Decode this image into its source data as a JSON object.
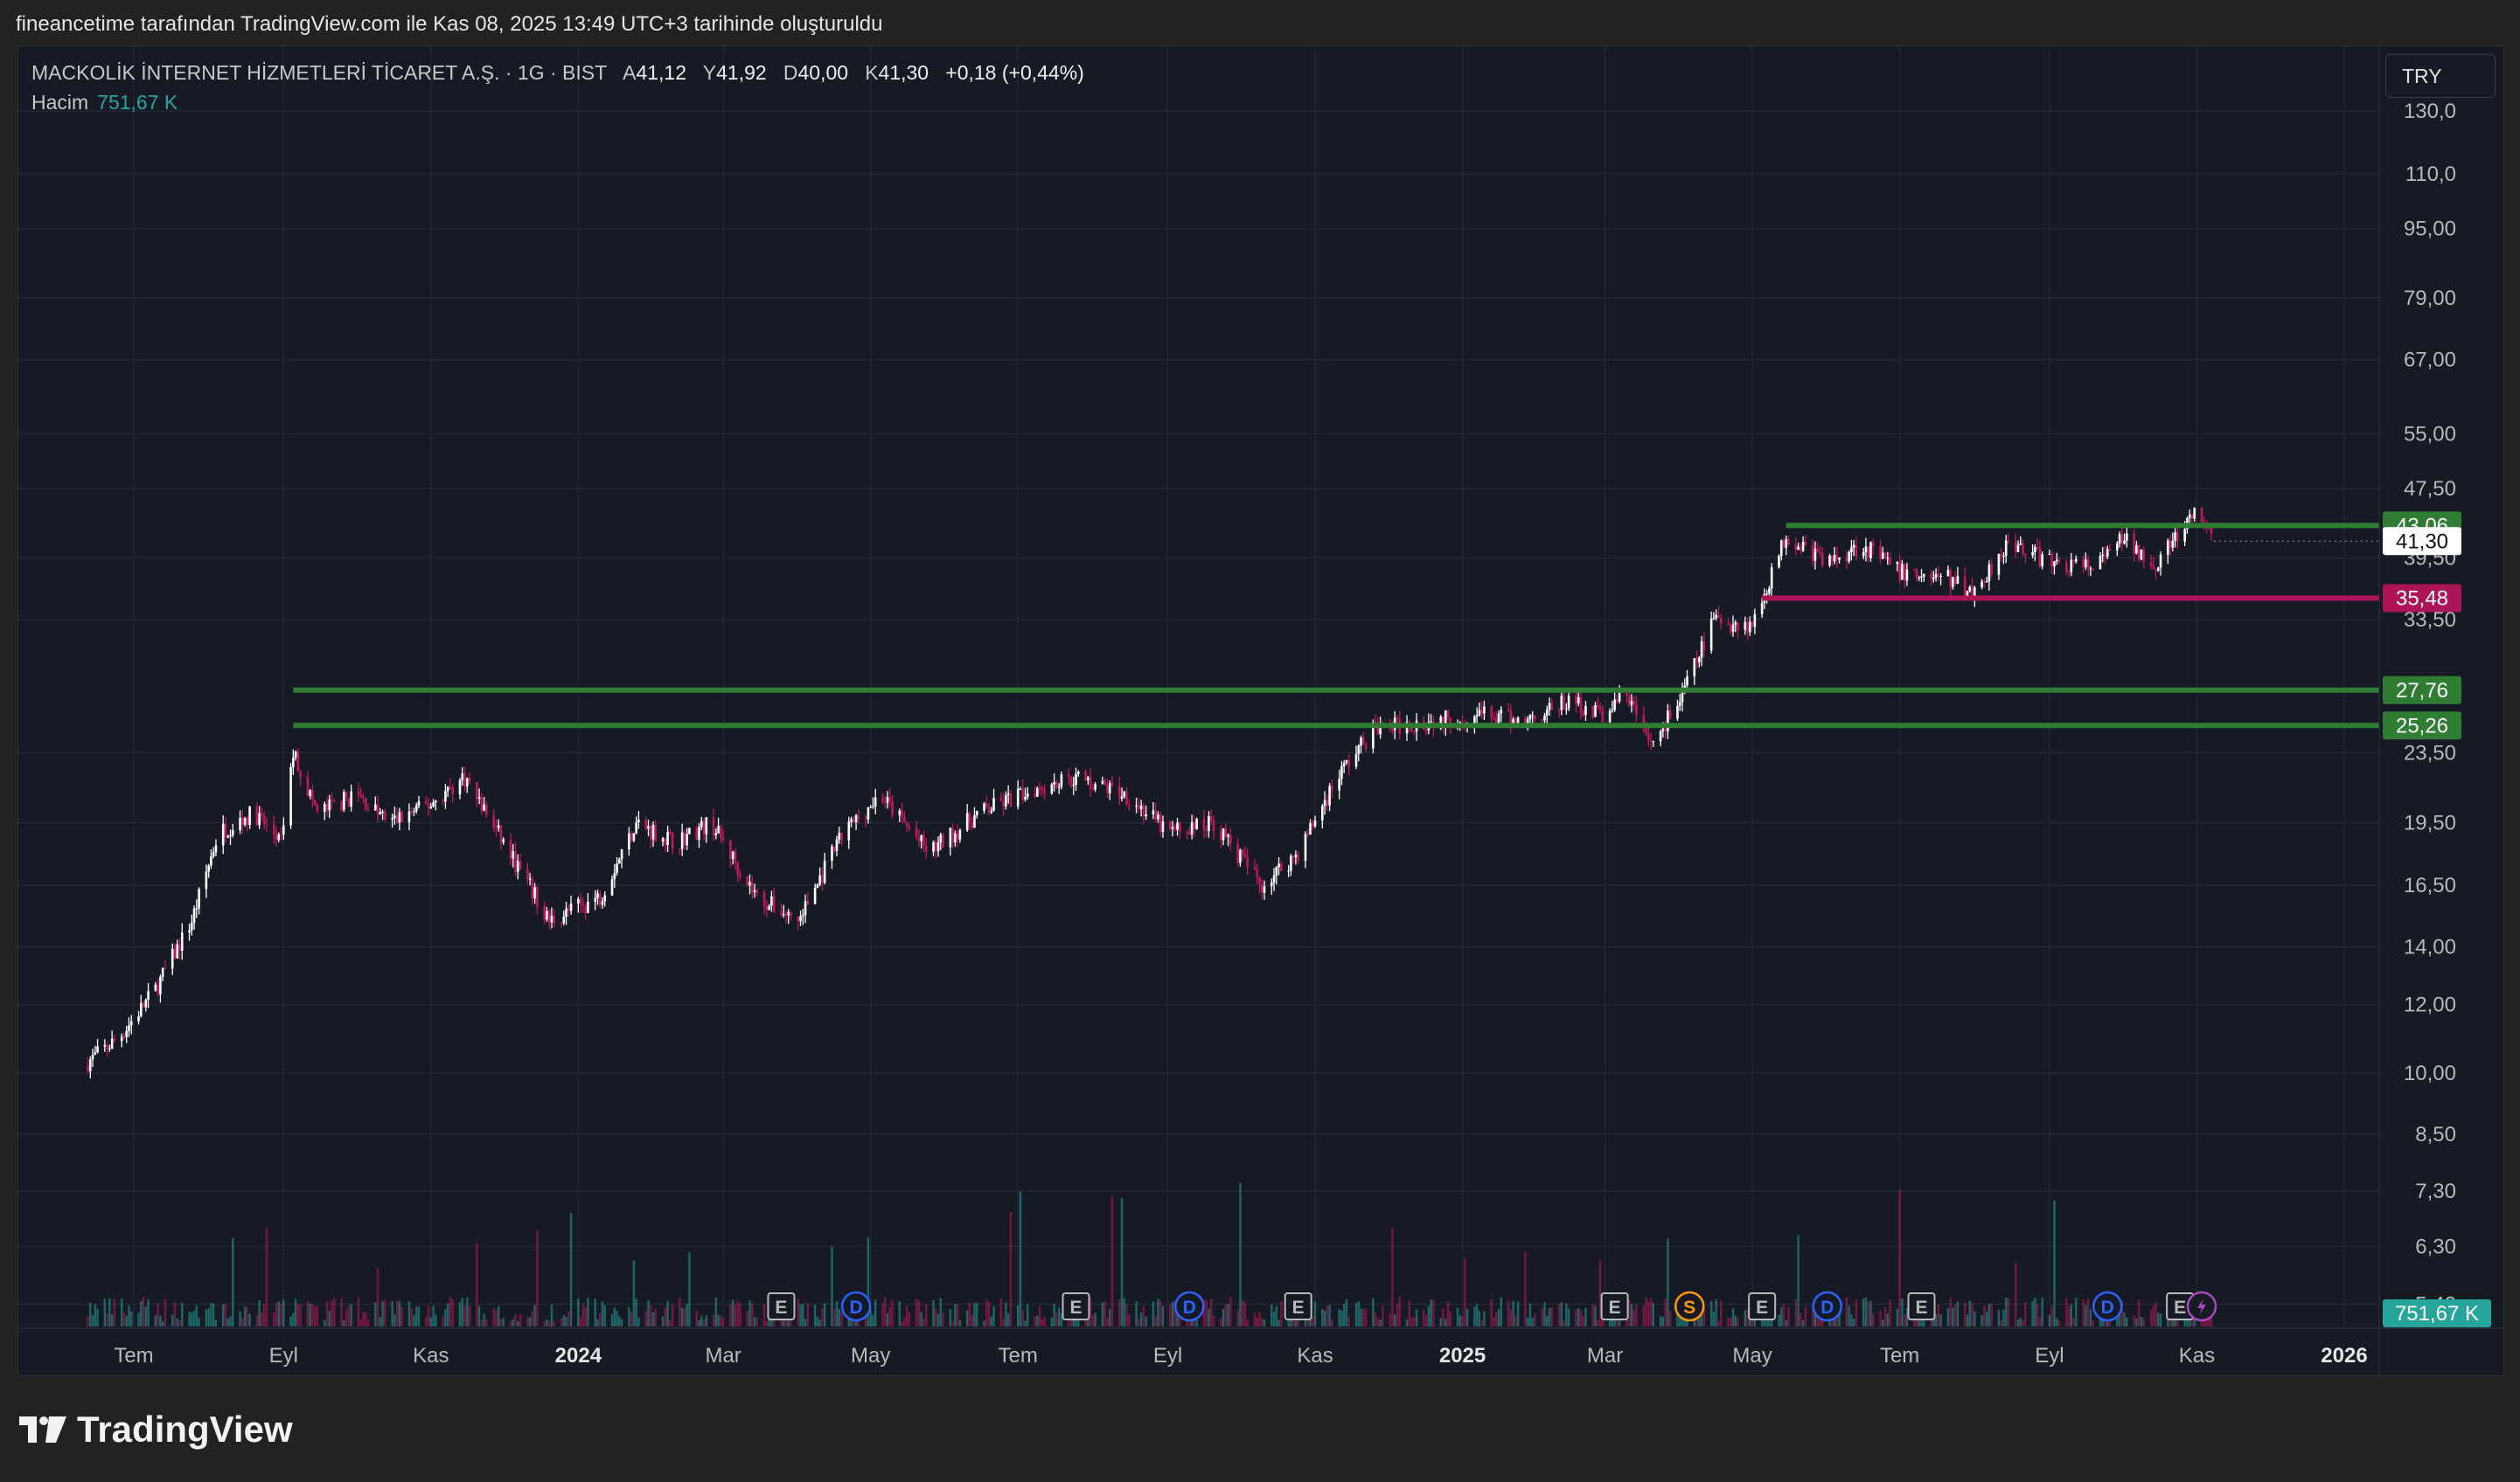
{
  "header": {
    "attribution": "fineancetime tarafından TradingView.com ile Kas 08, 2025 13:49 UTC+3 tarihinde oluşturuldu"
  },
  "legend": {
    "symbol": "MACKOLİK İNTERNET HİZMETLERİ TİCARET A.Ş. · 1G · BIST",
    "open_label": "A",
    "open": "41,12",
    "high_label": "Y",
    "high": "41,92",
    "low_label": "D",
    "low": "40,00",
    "close_label": "K",
    "close": "41,30",
    "change": "+0,18 (+0,44%)",
    "volume_label": "Hacim",
    "volume": "751,67 K"
  },
  "currency_button": "TRY",
  "footer": {
    "brand": "TradingView"
  },
  "colors": {
    "up": "#ffffff",
    "down": "#c2185b",
    "support": "#2e7d32",
    "resistance_magenta": "#ad1457",
    "volume_up": "#26a69a",
    "volume_down": "#c2185b",
    "background": "#161a25"
  },
  "chart_data": {
    "type": "candlestick",
    "y_scale": "log",
    "y_ticks": [
      "130,0",
      "110,0",
      "95,00",
      "79,00",
      "67,00",
      "55,00",
      "47,50",
      "39,50",
      "33,50",
      "23,50",
      "19,50",
      "16,50",
      "14,00",
      "12,00",
      "10,00",
      "8,50",
      "7,30",
      "6,30",
      "5,40"
    ],
    "x_ticks": [
      {
        "label": "Tem",
        "bold": false
      },
      {
        "label": "Eyl",
        "bold": false
      },
      {
        "label": "Kas",
        "bold": false
      },
      {
        "label": "2024",
        "bold": true
      },
      {
        "label": "Mar",
        "bold": false
      },
      {
        "label": "May",
        "bold": false
      },
      {
        "label": "Tem",
        "bold": false
      },
      {
        "label": "Eyl",
        "bold": false
      },
      {
        "label": "Kas",
        "bold": false
      },
      {
        "label": "2025",
        "bold": true
      },
      {
        "label": "Mar",
        "bold": false
      },
      {
        "label": "May",
        "bold": false
      },
      {
        "label": "Tem",
        "bold": false
      },
      {
        "label": "Eyl",
        "bold": false
      },
      {
        "label": "Kas",
        "bold": false
      },
      {
        "label": "2026",
        "bold": true
      }
    ],
    "price_path": [
      [
        "2023-06-10",
        10.2
      ],
      [
        "2023-06-25",
        11.0
      ],
      [
        "2023-07-10",
        12.5
      ],
      [
        "2023-07-25",
        15.0
      ],
      [
        "2023-08-05",
        19.0
      ],
      [
        "2023-08-20",
        20.0
      ],
      [
        "2023-08-31",
        18.5
      ],
      [
        "2023-09-05",
        23.5
      ],
      [
        "2023-09-15",
        20.0
      ],
      [
        "2023-10-01",
        21.0
      ],
      [
        "2023-10-15",
        19.5
      ],
      [
        "2023-11-01",
        20.5
      ],
      [
        "2023-11-15",
        22.0
      ],
      [
        "2023-12-01",
        18.5
      ],
      [
        "2023-12-20",
        15.0
      ],
      [
        "2024-01-10",
        16.0
      ],
      [
        "2024-01-25",
        19.5
      ],
      [
        "2024-02-10",
        18.5
      ],
      [
        "2024-02-25",
        19.5
      ],
      [
        "2024-03-15",
        16.0
      ],
      [
        "2024-04-01",
        15.0
      ],
      [
        "2024-04-20",
        19.0
      ],
      [
        "2024-05-05",
        21.0
      ],
      [
        "2024-05-25",
        18.0
      ],
      [
        "2024-06-15",
        20.0
      ],
      [
        "2024-07-10",
        21.5
      ],
      [
        "2024-07-25",
        22.0
      ],
      [
        "2024-08-15",
        21.0
      ],
      [
        "2024-09-01",
        19.0
      ],
      [
        "2024-09-20",
        19.5
      ],
      [
        "2024-10-10",
        16.5
      ],
      [
        "2024-10-25",
        18.0
      ],
      [
        "2024-11-10",
        22.0
      ],
      [
        "2024-11-25",
        25.0
      ],
      [
        "2024-12-15",
        25.5
      ],
      [
        "2025-01-10",
        26.0
      ],
      [
        "2025-01-25",
        25.5
      ],
      [
        "2025-02-15",
        27.0
      ],
      [
        "2025-02-28",
        26.0
      ],
      [
        "2025-03-10",
        27.5
      ],
      [
        "2025-03-20",
        24.0
      ],
      [
        "2025-04-01",
        27.0
      ],
      [
        "2025-04-15",
        33.5
      ],
      [
        "2025-05-01",
        33.0
      ],
      [
        "2025-05-15",
        42.0
      ],
      [
        "2025-06-01",
        39.0
      ],
      [
        "2025-06-15",
        41.0
      ],
      [
        "2025-07-01",
        38.0
      ],
      [
        "2025-07-20",
        37.5
      ],
      [
        "2025-08-01",
        36.0
      ],
      [
        "2025-08-15",
        41.5
      ],
      [
        "2025-09-01",
        39.0
      ],
      [
        "2025-09-20",
        38.5
      ],
      [
        "2025-10-01",
        41.5
      ],
      [
        "2025-10-15",
        39.0
      ],
      [
        "2025-10-25",
        42.0
      ],
      [
        "2025-11-01",
        44.5
      ],
      [
        "2025-11-08",
        41.3
      ]
    ],
    "horizontal_levels": [
      {
        "value": 43.06,
        "label": "43,06",
        "color": "#2e7d32",
        "start": "2025-05-15"
      },
      {
        "value": 35.48,
        "label": "35,48",
        "color": "#ad1457",
        "start": "2025-05-05"
      },
      {
        "value": 27.76,
        "label": "27,76",
        "color": "#2e7d32",
        "start": "2023-09-05"
      },
      {
        "value": 25.26,
        "label": "25,26",
        "color": "#2e7d32",
        "start": "2023-09-05"
      }
    ],
    "last_price": {
      "value": 41.3,
      "label": "41,30"
    },
    "volume_label": "751,67 K",
    "events": [
      {
        "date": "2024-03-25",
        "type": "E"
      },
      {
        "date": "2024-04-25",
        "type": "D"
      },
      {
        "date": "2024-07-25",
        "type": "E"
      },
      {
        "date": "2024-09-10",
        "type": "D"
      },
      {
        "date": "2024-10-25",
        "type": "E"
      },
      {
        "date": "2025-03-05",
        "type": "E"
      },
      {
        "date": "2025-04-05",
        "type": "S"
      },
      {
        "date": "2025-05-05",
        "type": "E"
      },
      {
        "date": "2025-06-01",
        "type": "D"
      },
      {
        "date": "2025-07-10",
        "type": "E"
      },
      {
        "date": "2025-09-25",
        "type": "D"
      },
      {
        "date": "2025-10-25",
        "type": "E"
      },
      {
        "date": "2025-11-03",
        "type": "F"
      }
    ]
  }
}
